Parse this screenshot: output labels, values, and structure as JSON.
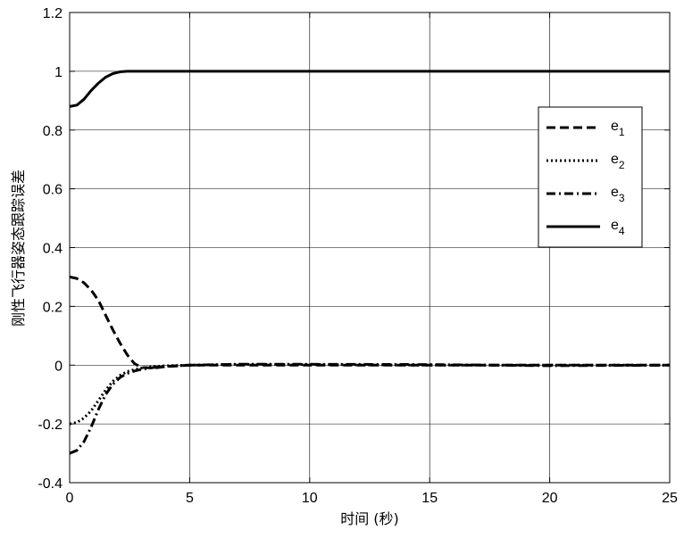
{
  "chart_data": {
    "type": "line",
    "title": "",
    "xlabel": "时间 (秒)",
    "ylabel": "刚性飞行器姿态跟踪误差",
    "xlim": [
      0,
      25
    ],
    "ylim": [
      -0.4,
      1.2
    ],
    "xticks": [
      0,
      5,
      10,
      15,
      20,
      25
    ],
    "xtick_labels": [
      "0",
      "5",
      "10",
      "15",
      "20",
      "25"
    ],
    "yticks": [
      -0.4,
      -0.2,
      0,
      0.2,
      0.4,
      0.6,
      0.8,
      1,
      1.2
    ],
    "ytick_labels": [
      "-0.4",
      "-0.2",
      "0",
      "0.2",
      "0.4",
      "0.6",
      "0.8",
      "1",
      "1.2"
    ],
    "grid": true,
    "legend_position": "right",
    "series": [
      {
        "name": "e",
        "subscript": "1",
        "style": "dashed",
        "color": "#000000",
        "x": [
          0,
          0.3,
          0.6,
          0.9,
          1.2,
          1.5,
          1.8,
          2.1,
          2.4,
          2.7,
          3.0,
          3.5,
          4.0,
          5.0,
          7.0,
          10.0,
          15.0,
          20.0,
          25.0
        ],
        "y": [
          0.3,
          0.295,
          0.28,
          0.255,
          0.22,
          0.17,
          0.12,
          0.075,
          0.035,
          0.005,
          -0.008,
          -0.01,
          -0.005,
          0.0,
          0.0,
          0.0,
          0.0,
          0.0,
          0.0
        ]
      },
      {
        "name": "e",
        "subscript": "2",
        "style": "dotted",
        "color": "#000000",
        "x": [
          0,
          0.3,
          0.6,
          0.9,
          1.2,
          1.5,
          1.8,
          2.1,
          2.4,
          2.7,
          3.0,
          3.5,
          4.0,
          5.0,
          7.0,
          10.0,
          15.0,
          20.0,
          25.0
        ],
        "y": [
          -0.2,
          -0.195,
          -0.18,
          -0.155,
          -0.12,
          -0.085,
          -0.055,
          -0.035,
          -0.022,
          -0.015,
          -0.01,
          -0.005,
          -0.002,
          0.0,
          0.003,
          0.002,
          0.0,
          0.0,
          0.0
        ]
      },
      {
        "name": "e",
        "subscript": "3",
        "style": "dashdot",
        "color": "#000000",
        "x": [
          0,
          0.3,
          0.6,
          0.9,
          1.2,
          1.5,
          1.8,
          2.1,
          2.4,
          2.7,
          3.0,
          3.5,
          4.0,
          5.0,
          7.0,
          10.0,
          15.0,
          20.0,
          25.0
        ],
        "y": [
          -0.3,
          -0.29,
          -0.26,
          -0.21,
          -0.15,
          -0.1,
          -0.065,
          -0.042,
          -0.028,
          -0.02,
          -0.014,
          -0.008,
          -0.004,
          0.0,
          0.003,
          0.003,
          0.002,
          -0.002,
          0.0
        ]
      },
      {
        "name": "e",
        "subscript": "4",
        "style": "solid",
        "color": "#000000",
        "x": [
          0,
          0.3,
          0.6,
          0.9,
          1.2,
          1.5,
          1.8,
          2.1,
          2.4,
          3.0,
          5.0,
          10.0,
          15.0,
          20.0,
          25.0
        ],
        "y": [
          0.88,
          0.885,
          0.905,
          0.935,
          0.96,
          0.98,
          0.992,
          0.998,
          1.0,
          1.0,
          1.0,
          1.0,
          1.0,
          1.0,
          1.0
        ]
      }
    ]
  }
}
